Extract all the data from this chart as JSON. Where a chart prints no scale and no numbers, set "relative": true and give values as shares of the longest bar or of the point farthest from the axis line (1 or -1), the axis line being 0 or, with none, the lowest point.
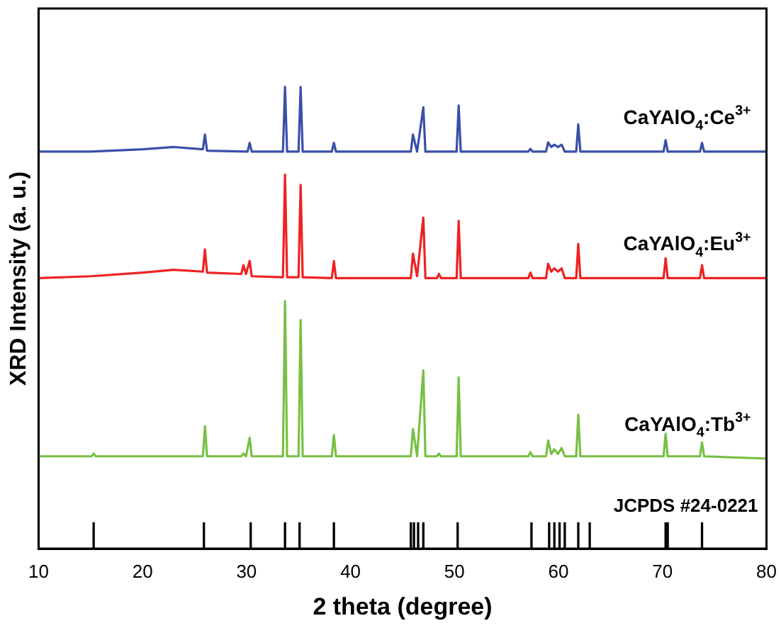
{
  "chart_data": {
    "type": "line",
    "relative": true,
    "xlabel": "2 theta (degree)",
    "ylabel": "XRD Intensity (a. u.)",
    "xlim": [
      10,
      80
    ],
    "xticks": [
      10,
      20,
      30,
      40,
      50,
      60,
      70,
      80
    ],
    "tick_labels": "x",
    "grid": false,
    "legend": false,
    "marker": "none",
    "annotations": [
      "JCPDS #24-0221"
    ],
    "series": [
      {
        "name": "CaYAlO$_{4}$:Ce$^{3+}$",
        "color": "#3a4fa8",
        "x": [
          10,
          15,
          20,
          23,
          25.8,
          26.0,
          26.2,
          30.1,
          30.3,
          30.5,
          33.5,
          33.7,
          33.9,
          35.0,
          35.2,
          35.4,
          38.2,
          38.4,
          38.6,
          45.8,
          46.0,
          46.4,
          47.0,
          47.2,
          50.2,
          50.4,
          50.6,
          57.1,
          57.3,
          57.5,
          58.8,
          59.0,
          59.3,
          59.6,
          59.95,
          60.3,
          60.6,
          61.7,
          61.9,
          62.1,
          70.1,
          70.3,
          70.5,
          73.6,
          73.8,
          74.0,
          80
        ],
        "values": [
          0.86,
          0.86,
          0.865,
          0.87,
          0.865,
          0.897,
          0.862,
          0.86,
          0.879,
          0.86,
          0.86,
          1.0,
          0.86,
          0.86,
          1.0,
          0.86,
          0.86,
          0.879,
          0.86,
          0.86,
          0.897,
          0.86,
          0.956,
          0.86,
          0.86,
          0.96,
          0.86,
          0.86,
          0.866,
          0.86,
          0.86,
          0.88,
          0.87,
          0.875,
          0.87,
          0.875,
          0.86,
          0.86,
          0.919,
          0.86,
          0.86,
          0.885,
          0.86,
          0.86,
          0.879,
          0.86,
          0.86
        ]
      },
      {
        "name": "CaYAlO$_{4}$:Eu$^{3+}$",
        "color": "#ee2222",
        "x": [
          10,
          15,
          20,
          23,
          25.8,
          26.0,
          26.2,
          29.5,
          29.7,
          29.95,
          30.3,
          30.5,
          33.5,
          33.7,
          33.9,
          35.0,
          35.2,
          35.4,
          38.2,
          38.4,
          38.6,
          45.8,
          46.0,
          46.4,
          47.0,
          47.2,
          48.3,
          48.5,
          48.7,
          50.2,
          50.4,
          50.6,
          57.1,
          57.3,
          57.5,
          58.8,
          59.0,
          59.3,
          59.6,
          59.95,
          60.3,
          60.6,
          61.7,
          61.9,
          62.1,
          70.1,
          70.3,
          70.5,
          73.6,
          73.8,
          74.0,
          80
        ],
        "values": [
          0.586,
          0.59,
          0.598,
          0.604,
          0.6,
          0.648,
          0.598,
          0.595,
          0.614,
          0.595,
          0.623,
          0.59,
          0.588,
          0.81,
          0.588,
          0.588,
          0.788,
          0.588,
          0.586,
          0.623,
          0.586,
          0.586,
          0.639,
          0.59,
          0.717,
          0.586,
          0.586,
          0.595,
          0.586,
          0.586,
          0.71,
          0.586,
          0.586,
          0.598,
          0.586,
          0.586,
          0.617,
          0.6,
          0.607,
          0.6,
          0.607,
          0.586,
          0.586,
          0.66,
          0.586,
          0.586,
          0.629,
          0.586,
          0.586,
          0.614,
          0.586,
          0.586
        ]
      },
      {
        "name": "CaYAlO$_{4}$:Tb$^{3+}$",
        "color": "#77c043",
        "x": [
          10,
          15.1,
          15.3,
          15.5,
          20,
          25.8,
          26.0,
          26.2,
          29.5,
          29.7,
          29.95,
          30.3,
          30.5,
          33.5,
          33.7,
          33.9,
          35.0,
          35.2,
          35.4,
          38.2,
          38.4,
          38.6,
          45.8,
          46.0,
          46.4,
          47.0,
          47.2,
          48.3,
          48.5,
          48.7,
          50.2,
          50.4,
          50.6,
          57.1,
          57.3,
          57.5,
          58.8,
          59.0,
          59.3,
          59.6,
          59.95,
          60.3,
          60.6,
          61.7,
          61.9,
          62.1,
          70.1,
          70.3,
          70.5,
          73.6,
          73.8,
          74.0,
          80
        ],
        "values": [
          0.2,
          0.2,
          0.206,
          0.2,
          0.2,
          0.2,
          0.265,
          0.2,
          0.2,
          0.206,
          0.2,
          0.24,
          0.2,
          0.2,
          0.536,
          0.2,
          0.2,
          0.495,
          0.2,
          0.2,
          0.246,
          0.2,
          0.2,
          0.259,
          0.2,
          0.386,
          0.2,
          0.2,
          0.206,
          0.2,
          0.2,
          0.371,
          0.2,
          0.2,
          0.209,
          0.2,
          0.2,
          0.234,
          0.205,
          0.215,
          0.205,
          0.218,
          0.2,
          0.2,
          0.29,
          0.2,
          0.2,
          0.249,
          0.2,
          0.2,
          0.23,
          0.2,
          0.195
        ]
      },
      {
        "type": "bar",
        "color": "#000000",
        "x": [
          15.3,
          25.9,
          30.4,
          33.7,
          35.1,
          38.4,
          45.8,
          46.1,
          46.5,
          47.0,
          50.3,
          57.4,
          59.1,
          59.6,
          60.1,
          60.6,
          61.9,
          63.0,
          70.3,
          70.5,
          73.8
        ],
        "values": [
          0.056,
          0.056,
          0.056,
          0.056,
          0.056,
          0.056,
          0.056,
          0.056,
          0.056,
          0.056,
          0.056,
          0.056,
          0.056,
          0.056,
          0.056,
          0.056,
          0.056,
          0.056,
          0.056,
          0.056,
          0.056
        ]
      }
    ]
  }
}
